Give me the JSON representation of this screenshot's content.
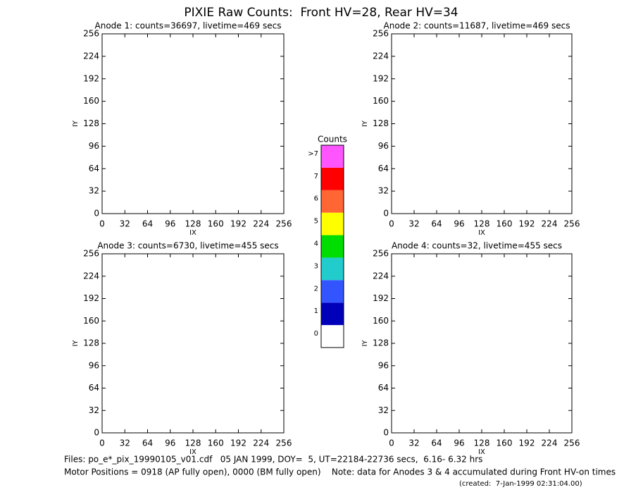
{
  "title": "PIXIE Raw Counts:  Front HV=28, Rear HV=34",
  "chart_data": [
    {
      "type": "heatmap",
      "title": "Anode 1: counts=36697, livetime=469 secs",
      "xlabel": "IX",
      "ylabel": "IY",
      "xlim": [
        0,
        256
      ],
      "ylim": [
        0,
        256
      ],
      "xticks": [
        0,
        32,
        64,
        96,
        128,
        160,
        192,
        224,
        256
      ],
      "yticks": [
        0,
        32,
        64,
        96,
        128,
        160,
        192,
        224,
        256
      ]
    },
    {
      "type": "heatmap",
      "title": "Anode 2: counts=11687, livetime=469 secs",
      "xlabel": "IX",
      "ylabel": "IY",
      "xlim": [
        0,
        256
      ],
      "ylim": [
        0,
        256
      ],
      "xticks": [
        0,
        32,
        64,
        96,
        128,
        160,
        192,
        224,
        256
      ],
      "yticks": [
        0,
        32,
        64,
        96,
        128,
        160,
        192,
        224,
        256
      ]
    },
    {
      "type": "heatmap",
      "title": "Anode 3: counts=6730, livetime=455 secs",
      "xlabel": "IX",
      "ylabel": "IY",
      "xlim": [
        0,
        256
      ],
      "ylim": [
        0,
        256
      ],
      "xticks": [
        0,
        32,
        64,
        96,
        128,
        160,
        192,
        224,
        256
      ],
      "yticks": [
        0,
        32,
        64,
        96,
        128,
        160,
        192,
        224,
        256
      ]
    },
    {
      "type": "heatmap",
      "title": "Anode 4: counts=32, livetime=455 secs",
      "xlabel": "IX",
      "ylabel": "IY",
      "xlim": [
        0,
        256
      ],
      "ylim": [
        0,
        256
      ],
      "xticks": [
        0,
        32,
        64,
        96,
        128,
        160,
        192,
        224,
        256
      ],
      "yticks": [
        0,
        32,
        64,
        96,
        128,
        160,
        192,
        224,
        256
      ]
    }
  ],
  "colorbar": {
    "title": "Counts",
    "labels": [
      "0",
      "1",
      "2",
      "3",
      "4",
      "5",
      "6",
      "7",
      ">7"
    ],
    "colors": [
      "#ffffff",
      "#0000bb",
      "#3355ff",
      "#22cccc",
      "#00dd00",
      "#ffff00",
      "#ff6633",
      "#ff0000",
      "#ff55ff"
    ]
  },
  "footer": [
    "Files: po_e*_pix_19990105_v01.cdf   05 JAN 1999, DOY=  5, UT=22184-22736 secs,  6.16- 6.32 hrs",
    "Motor Positions = 0918 (AP fully open), 0000 (BM fully open)    Note: data for Anodes 3 & 4 accumulated during Front HV-on times",
    "(created:  7-Jan-1999 02:31:04.00)"
  ]
}
